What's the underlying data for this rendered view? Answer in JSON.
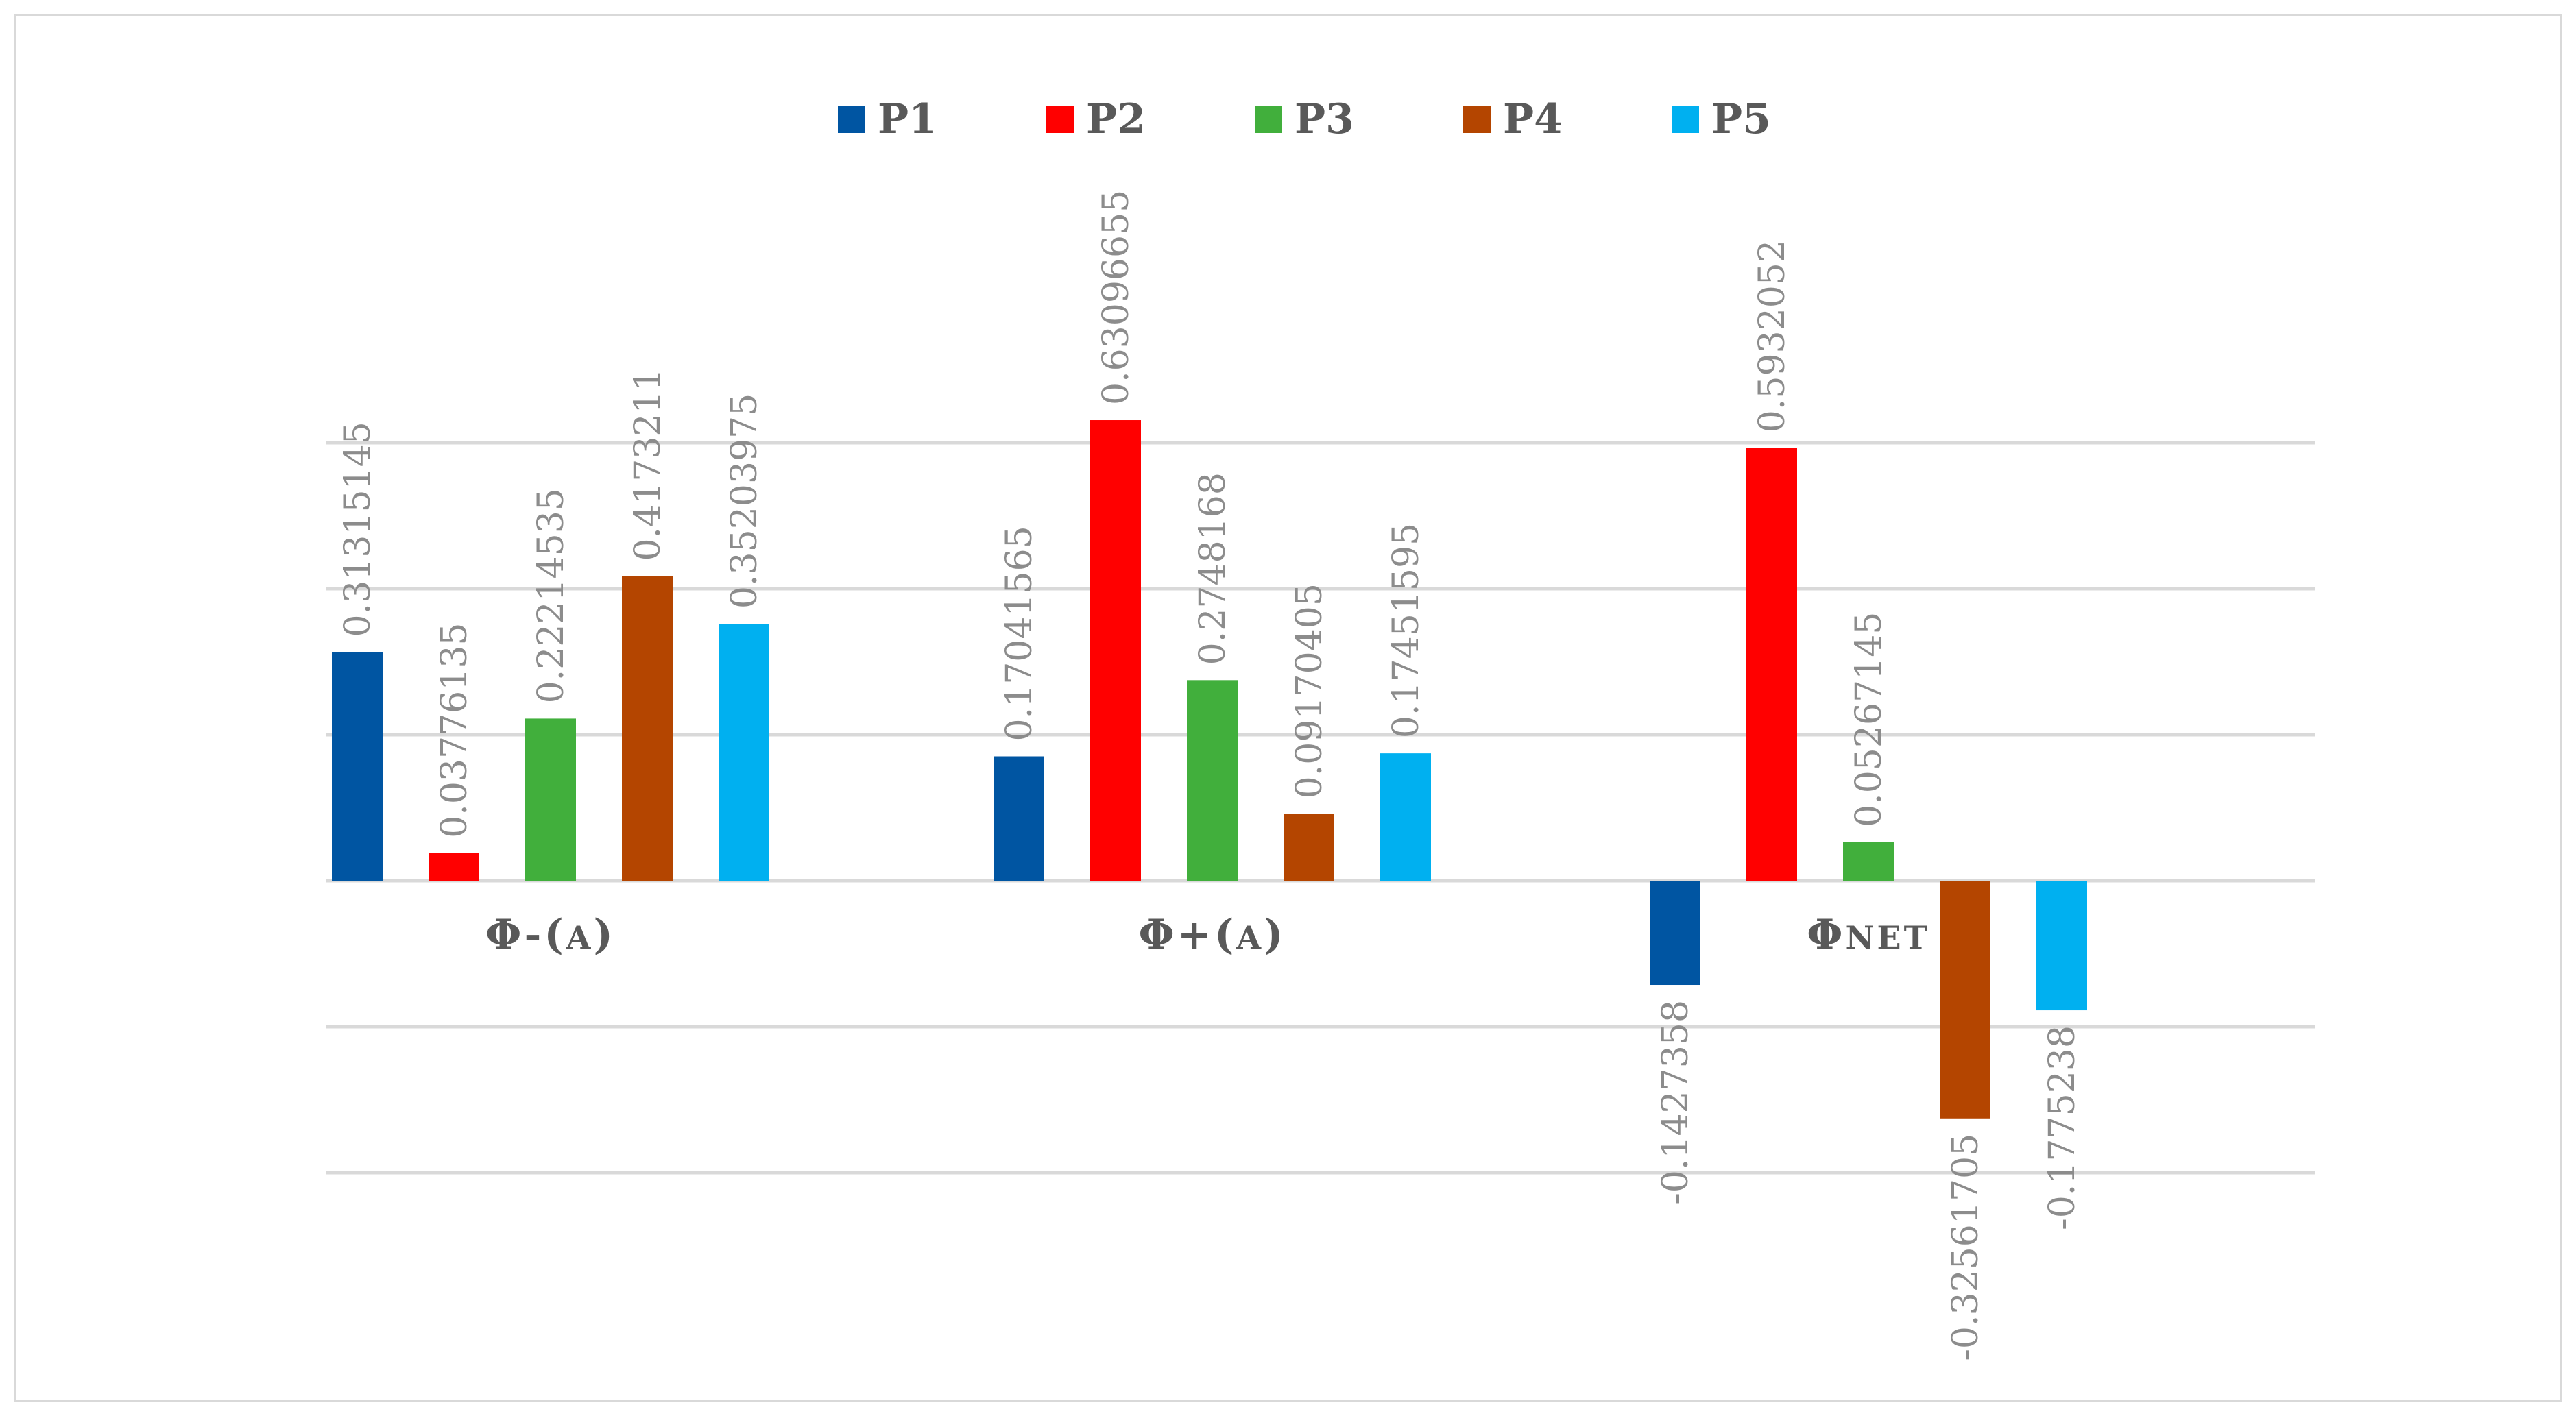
{
  "chart_data": {
    "type": "bar",
    "categories": [
      "Φ-(A)",
      "Φ+(A)",
      "ΦNET"
    ],
    "series": [
      {
        "name": "P1",
        "color": "#0055a2",
        "values": [
          0.31315145,
          0.17041565,
          -0.1427358
        ],
        "labels": [
          "0.31315145",
          "0.17041565",
          "-0.1427358"
        ]
      },
      {
        "name": "P2",
        "color": "#ff0000",
        "values": [
          0.03776135,
          0.63096655,
          0.5932052
        ],
        "labels": [
          "0.03776135",
          "0.63096655",
          "0.5932052"
        ]
      },
      {
        "name": "P3",
        "color": "#41af3c",
        "values": [
          0.22214535,
          0.2748168,
          0.05267145
        ],
        "labels": [
          "0.22214535",
          "0.2748168",
          "0.05267145"
        ]
      },
      {
        "name": "P4",
        "color": "#b44500",
        "values": [
          0.4173211,
          0.09170405,
          -0.32561705
        ],
        "labels": [
          "0.4173211",
          "0.09170405",
          "-0.32561705"
        ]
      },
      {
        "name": "P5",
        "color": "#00b0f0",
        "values": [
          0.35203975,
          0.17451595,
          -0.1775238
        ],
        "labels": [
          "0.35203975",
          "0.17451595",
          "-0.1775238"
        ]
      }
    ],
    "ylim": [
      -0.4,
      0.8
    ],
    "gridlines": true,
    "gridline_step": 0.2,
    "legend_position": "top-center",
    "title": "",
    "xlabel": "",
    "ylabel": ""
  }
}
